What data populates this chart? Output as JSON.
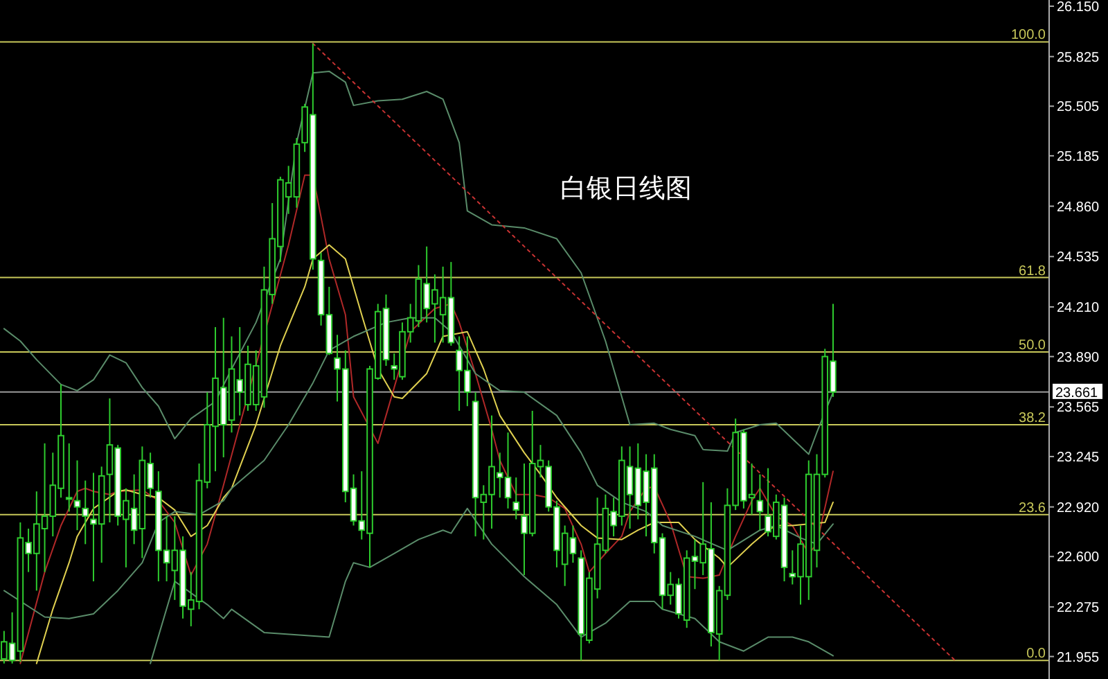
{
  "chart_data": {
    "type": "candlestick",
    "title": "白银日线图",
    "categories": [
      null,
      null,
      null,
      null,
      null,
      null,
      null,
      null,
      null,
      null,
      null,
      null,
      null,
      null,
      null,
      null,
      null,
      null,
      null,
      null,
      null,
      null,
      null,
      null,
      null,
      null,
      null,
      null,
      null,
      null,
      null,
      null,
      null,
      null,
      null,
      null,
      null,
      null,
      null,
      null,
      null,
      null,
      null,
      null,
      null,
      null,
      null,
      null,
      null,
      null,
      null,
      null,
      null,
      null,
      null,
      null,
      null,
      null,
      null,
      null,
      null,
      null,
      null,
      null,
      null,
      null,
      null,
      null,
      null,
      null,
      null,
      null,
      null,
      null,
      null,
      null,
      null,
      null,
      null,
      null,
      null,
      null,
      null,
      null,
      null,
      null,
      null,
      null,
      null,
      null,
      null,
      null,
      null,
      null,
      null,
      null,
      null,
      null,
      null,
      null,
      null,
      null,
      null,
      null,
      null,
      null,
      null,
      null,
      null,
      null,
      null,
      null,
      null,
      null,
      null,
      null,
      null,
      null,
      null,
      null,
      null,
      null,
      null,
      null,
      null,
      null,
      null,
      null,
      null
    ],
    "ohlc": [
      [
        21.94,
        22.12,
        21.91,
        22.05
      ],
      [
        22.04,
        22.24,
        21.91,
        21.93
      ],
      [
        21.99,
        22.82,
        21.92,
        22.72
      ],
      [
        22.69,
        22.78,
        22.5,
        22.62
      ],
      [
        22.62,
        23.02,
        22.38,
        22.81
      ],
      [
        22.78,
        23.33,
        22.5,
        22.86
      ],
      [
        22.86,
        23.27,
        22.73,
        23.06
      ],
      [
        23.04,
        23.71,
        22.98,
        23.38
      ],
      [
        22.98,
        23.33,
        22.89,
        22.97
      ],
      [
        22.96,
        23.22,
        22.77,
        22.92
      ],
      [
        22.91,
        23.09,
        22.68,
        22.86
      ],
      [
        22.84,
        23.14,
        22.44,
        22.81
      ],
      [
        22.81,
        23.18,
        22.56,
        23.12
      ],
      [
        23.13,
        23.62,
        22.82,
        23.32
      ],
      [
        23.3,
        23.32,
        22.8,
        22.86
      ],
      [
        22.84,
        23.04,
        22.53,
        22.96
      ],
      [
        22.91,
        23.13,
        22.68,
        22.77
      ],
      [
        22.78,
        23.31,
        22.59,
        23.22
      ],
      [
        23.2,
        23.27,
        22.98,
        23.04
      ],
      [
        23.02,
        23.15,
        22.44,
        22.64
      ],
      [
        22.64,
        22.86,
        22.44,
        22.56
      ],
      [
        22.51,
        22.86,
        22.32,
        22.64
      ],
      [
        22.64,
        22.73,
        22.2,
        22.28
      ],
      [
        22.26,
        22.5,
        22.15,
        22.32
      ],
      [
        22.31,
        23.2,
        22.26,
        23.09
      ],
      [
        23.08,
        23.66,
        23.04,
        23.45
      ],
      [
        23.44,
        24.08,
        23.15,
        23.75
      ],
      [
        23.69,
        24.14,
        23.24,
        23.45
      ],
      [
        23.48,
        24.02,
        23.4,
        23.81
      ],
      [
        23.74,
        24.08,
        23.51,
        23.66
      ],
      [
        23.58,
        23.96,
        23.54,
        23.84
      ],
      [
        23.58,
        23.93,
        23.54,
        23.83
      ],
      [
        23.63,
        24.47,
        23.56,
        24.32
      ],
      [
        24.29,
        24.88,
        24.23,
        24.65
      ],
      [
        24.6,
        25.05,
        24.5,
        25.03
      ],
      [
        24.92,
        25.12,
        24.81,
        25.01
      ],
      [
        24.92,
        25.3,
        24.85,
        25.26
      ],
      [
        25.27,
        25.52,
        25.21,
        25.5
      ],
      [
        25.45,
        25.91,
        24.45,
        24.52
      ],
      [
        24.51,
        24.56,
        24.09,
        24.16
      ],
      [
        24.16,
        24.34,
        23.9,
        23.91
      ],
      [
        23.88,
        24.03,
        23.6,
        23.81
      ],
      [
        23.81,
        23.93,
        22.95,
        23.02
      ],
      [
        23.04,
        23.13,
        22.8,
        22.83
      ],
      [
        22.83,
        23.15,
        22.71,
        22.77
      ],
      [
        22.75,
        23.83,
        22.53,
        23.81
      ],
      [
        23.75,
        24.23,
        23.74,
        24.18
      ],
      [
        24.2,
        24.29,
        23.83,
        23.87
      ],
      [
        23.83,
        23.91,
        23.74,
        23.81
      ],
      [
        23.76,
        24.11,
        23.74,
        24.05
      ],
      [
        24.05,
        24.23,
        23.98,
        24.14
      ],
      [
        24.12,
        24.48,
        24.08,
        24.39
      ],
      [
        24.36,
        24.6,
        24.11,
        24.2
      ],
      [
        24.23,
        24.42,
        23.98,
        24.32
      ],
      [
        24.16,
        24.47,
        23.98,
        24.27
      ],
      [
        24.27,
        24.5,
        23.96,
        23.98
      ],
      [
        23.93,
        24.02,
        23.54,
        23.8
      ],
      [
        23.8,
        24.02,
        23.57,
        23.66
      ],
      [
        23.6,
        23.66,
        22.73,
        22.98
      ],
      [
        22.95,
        23.06,
        22.71,
        23.0
      ],
      [
        23.0,
        23.51,
        22.78,
        23.18
      ],
      [
        23.14,
        23.27,
        22.98,
        23.11
      ],
      [
        23.11,
        23.4,
        22.91,
        22.98
      ],
      [
        22.95,
        23.11,
        22.84,
        22.9
      ],
      [
        22.86,
        23.2,
        22.48,
        22.75
      ],
      [
        22.75,
        23.54,
        22.73,
        23.2
      ],
      [
        23.18,
        23.32,
        23.11,
        23.22
      ],
      [
        23.18,
        23.22,
        22.89,
        22.92
      ],
      [
        22.92,
        22.96,
        22.53,
        22.64
      ],
      [
        22.55,
        22.8,
        22.41,
        22.75
      ],
      [
        22.72,
        22.8,
        22.56,
        22.62
      ],
      [
        22.59,
        22.64,
        21.93,
        22.1
      ],
      [
        22.06,
        22.5,
        22.04,
        22.46
      ],
      [
        22.39,
        22.98,
        22.33,
        22.68
      ],
      [
        22.64,
        23.0,
        22.62,
        22.91
      ],
      [
        22.89,
        22.98,
        22.73,
        22.8
      ],
      [
        22.86,
        23.31,
        22.8,
        23.22
      ],
      [
        23.18,
        23.31,
        22.78,
        23.0
      ],
      [
        23.17,
        23.33,
        22.84,
        22.93
      ],
      [
        23.15,
        23.26,
        22.73,
        22.95
      ],
      [
        23.17,
        23.26,
        22.62,
        22.69
      ],
      [
        22.72,
        22.75,
        22.26,
        22.35
      ],
      [
        22.35,
        22.5,
        22.29,
        22.42
      ],
      [
        22.42,
        22.46,
        22.2,
        22.23
      ],
      [
        22.19,
        22.64,
        22.14,
        22.59
      ],
      [
        22.6,
        22.71,
        22.39,
        22.57
      ],
      [
        22.56,
        23.08,
        22.48,
        22.68
      ],
      [
        22.65,
        22.95,
        22.02,
        22.11
      ],
      [
        22.1,
        22.41,
        21.93,
        22.38
      ],
      [
        22.35,
        23.04,
        22.32,
        22.93
      ],
      [
        22.93,
        23.49,
        22.9,
        23.4
      ],
      [
        23.4,
        23.42,
        22.91,
        22.96
      ],
      [
        22.98,
        23.2,
        22.87,
        23.0
      ],
      [
        22.96,
        23.13,
        22.77,
        22.89
      ],
      [
        22.86,
        23.17,
        22.73,
        22.76
      ],
      [
        22.73,
        23.0,
        22.71,
        22.95
      ],
      [
        22.93,
        22.98,
        22.44,
        22.53
      ],
      [
        22.49,
        22.64,
        22.42,
        22.47
      ],
      [
        22.47,
        22.8,
        22.29,
        22.68
      ],
      [
        22.47,
        23.22,
        22.32,
        23.13
      ],
      [
        22.64,
        23.26,
        22.53,
        23.13
      ],
      [
        23.13,
        23.94,
        23.11,
        23.89
      ],
      [
        23.86,
        24.23,
        23.63,
        23.661
      ],
      null,
      null,
      null,
      null,
      null,
      null,
      null,
      null,
      null,
      null,
      null,
      null,
      null,
      null,
      null,
      null,
      null,
      null,
      null,
      null,
      null,
      null,
      null,
      null,
      null,
      null
    ],
    "series": [
      {
        "type": "line",
        "color": "#b02828",
        "values": [
          null,
          null,
          21.91,
          null,
          null,
          22.5,
          null,
          22.8,
          null,
          23.02,
          23.04,
          23.02,
          null,
          23.0,
          23.02,
          null,
          null,
          23.03,
          null,
          22.96,
          null,
          22.82,
          null,
          22.48,
          null,
          22.68,
          null,
          23.06,
          null,
          null,
          null,
          null,
          null,
          null,
          null,
          24.61,
          null,
          25.06,
          25.06,
          null,
          24.52,
          null,
          24.16,
          23.63,
          null,
          null,
          23.33,
          null,
          23.69,
          null,
          24.05,
          null,
          null,
          24.2,
          null,
          24.23,
          24.11,
          null,
          23.78,
          null,
          23.42,
          23.22,
          null,
          23.0,
          null,
          23.0,
          null,
          22.98,
          null,
          22.91,
          null,
          22.68,
          22.5,
          null,
          22.62,
          null,
          22.73,
          22.89,
          null,
          23.04,
          23.05,
          null,
          22.82,
          null,
          22.47,
          null,
          22.46,
          null,
          22.48,
          null,
          22.73,
          null,
          22.96,
          23.04,
          null,
          22.86,
          null,
          22.8,
          null,
          22.62,
          22.68,
          null,
          23.15,
          null,
          null,
          null,
          null,
          null,
          null,
          null,
          null,
          null,
          null,
          null,
          null,
          null,
          null,
          null,
          null,
          null,
          null,
          null,
          null,
          null,
          null,
          null,
          null,
          null,
          null
        ]
      },
      {
        "type": "line",
        "color": "#e0d050",
        "values": [
          null,
          null,
          null,
          null,
          21.91,
          null,
          22.26,
          null,
          22.56,
          22.73,
          null,
          22.91,
          null,
          null,
          23.02,
          23.03,
          null,
          23.0,
          null,
          22.98,
          null,
          22.9,
          null,
          22.73,
          null,
          22.8,
          null,
          22.98,
          23.04,
          null,
          null,
          23.45,
          null,
          null,
          23.96,
          null,
          null,
          24.34,
          24.52,
          null,
          24.61,
          null,
          24.52,
          null,
          24.16,
          null,
          23.81,
          null,
          23.63,
          23.62,
          null,
          null,
          23.78,
          null,
          24.02,
          null,
          null,
          24.05,
          null,
          23.81,
          null,
          23.51,
          null,
          null,
          23.27,
          null,
          23.13,
          null,
          22.98,
          null,
          null,
          22.8,
          null,
          22.72,
          null,
          null,
          22.71,
          null,
          22.77,
          null,
          22.82,
          null,
          null,
          22.82,
          null,
          22.71,
          null,
          null,
          22.59,
          22.53,
          null,
          null,
          22.68,
          null,
          22.77,
          22.8,
          null,
          22.8,
          null,
          22.81,
          null,
          22.82,
          22.95,
          null,
          null,
          null,
          null,
          null,
          null,
          null,
          null,
          null,
          null,
          null,
          null,
          null,
          null,
          null,
          null,
          null,
          null,
          null,
          null,
          null,
          null,
          null,
          null,
          null,
          null
        ]
      },
      {
        "type": "line",
        "color": "#5a8c6a",
        "values": [
          24.07,
          null,
          23.99,
          null,
          23.87,
          null,
          null,
          23.71,
          null,
          23.67,
          null,
          23.74,
          null,
          23.9,
          null,
          23.85,
          null,
          23.69,
          null,
          23.57,
          null,
          23.36,
          null,
          23.49,
          null,
          null,
          23.6,
          null,
          23.81,
          null,
          null,
          24.11,
          null,
          null,
          24.52,
          null,
          25.27,
          null,
          25.72,
          null,
          25.73,
          null,
          25.66,
          25.51,
          null,
          null,
          25.54,
          null,
          null,
          25.55,
          null,
          null,
          25.6,
          null,
          25.55,
          null,
          25.27,
          24.83,
          null,
          null,
          24.74,
          null,
          null,
          null,
          24.72,
          null,
          null,
          null,
          24.65,
          null,
          null,
          24.43,
          null,
          null,
          23.99,
          null,
          null,
          23.45,
          null,
          null,
          23.46,
          null,
          23.42,
          null,
          null,
          23.38,
          23.29,
          null,
          null,
          23.28,
          23.4,
          null,
          null,
          23.45,
          null,
          23.46,
          null,
          23.36,
          null,
          23.26,
          23.4,
          null,
          23.66,
          null,
          null,
          null,
          null,
          null,
          null,
          null,
          null,
          null,
          null,
          null,
          null,
          null,
          null,
          null,
          null,
          null,
          null,
          null,
          null,
          null,
          null,
          null,
          null,
          null,
          null
        ]
      },
      {
        "type": "line",
        "color": "#5a8c6a",
        "values": [
          22.38,
          null,
          null,
          null,
          null,
          22.21,
          null,
          null,
          22.2,
          null,
          null,
          22.23,
          null,
          null,
          22.38,
          null,
          null,
          22.56,
          null,
          22.82,
          null,
          22.89,
          null,
          null,
          22.87,
          null,
          null,
          22.96,
          23.04,
          null,
          null,
          null,
          23.22,
          null,
          null,
          23.45,
          null,
          null,
          23.72,
          null,
          23.93,
          null,
          null,
          24.02,
          null,
          null,
          null,
          24.11,
          null,
          null,
          24.14,
          null,
          null,
          24.14,
          null,
          24.05,
          null,
          null,
          23.78,
          null,
          null,
          23.67,
          null,
          null,
          23.66,
          null,
          null,
          null,
          23.51,
          null,
          null,
          23.27,
          null,
          23.06,
          null,
          null,
          22.95,
          null,
          null,
          22.89,
          null,
          22.8,
          null,
          null,
          null,
          22.73,
          null,
          null,
          null,
          22.64,
          null,
          null,
          null,
          22.77,
          null,
          22.8,
          null,
          null,
          22.72,
          null,
          22.68,
          null,
          22.81,
          null,
          null,
          null,
          null,
          null,
          null,
          null,
          null,
          null,
          null,
          null,
          null,
          null,
          null,
          null,
          null,
          null,
          null,
          null,
          null,
          null,
          null,
          null,
          null,
          null,
          null
        ]
      },
      {
        "type": "line",
        "color": "#5a8c6a",
        "values": [
          null,
          null,
          null,
          null,
          null,
          null,
          null,
          null,
          null,
          null,
          null,
          null,
          null,
          null,
          null,
          null,
          null,
          null,
          21.91,
          null,
          null,
          22.44,
          null,
          null,
          null,
          22.29,
          null,
          22.2,
          22.26,
          null,
          null,
          null,
          22.11,
          null,
          null,
          null,
          null,
          null,
          null,
          null,
          22.08,
          null,
          22.44,
          22.56,
          null,
          22.53,
          null,
          null,
          22.62,
          null,
          null,
          22.71,
          null,
          null,
          22.77,
          22.75,
          null,
          22.91,
          null,
          null,
          22.68,
          null,
          null,
          null,
          22.47,
          null,
          null,
          null,
          22.29,
          null,
          null,
          22.08,
          null,
          null,
          22.17,
          null,
          null,
          22.31,
          null,
          null,
          22.31,
          22.26,
          null,
          null,
          null,
          22.2,
          null,
          null,
          22.05,
          null,
          null,
          21.99,
          null,
          null,
          22.08,
          null,
          null,
          22.08,
          null,
          22.05,
          null,
          null,
          21.96,
          null,
          null,
          null,
          null,
          null,
          null,
          null,
          null,
          null,
          null,
          null,
          null,
          null,
          null,
          null,
          null,
          null,
          null,
          null,
          null,
          null,
          null,
          null,
          null,
          null,
          null
        ]
      },
      {
        "type": "line",
        "color": "#c83232",
        "line_style": "dotted",
        "values": [
          null,
          null,
          null,
          null,
          null,
          null,
          null,
          null,
          null,
          null,
          null,
          null,
          null,
          null,
          null,
          null,
          null,
          null,
          null,
          null,
          null,
          null,
          null,
          null,
          null,
          null,
          null,
          null,
          null,
          null,
          null,
          null,
          null,
          null,
          null,
          null,
          null,
          null,
          25.91,
          null,
          null,
          null,
          null,
          null,
          null,
          null,
          null,
          null,
          null,
          null,
          null,
          null,
          null,
          null,
          null,
          null,
          null,
          null,
          null,
          null,
          null,
          null,
          null,
          null,
          null,
          null,
          null,
          null,
          null,
          null,
          null,
          null,
          null,
          null,
          null,
          null,
          null,
          null,
          null,
          null,
          null,
          null,
          null,
          null,
          null,
          null,
          null,
          null,
          null,
          null,
          null,
          null,
          null,
          null,
          null,
          null,
          null,
          null,
          null,
          null,
          null,
          null,
          null,
          null,
          null,
          null,
          null,
          null,
          null,
          null,
          null,
          null,
          null,
          null,
          null,
          null,
          null,
          21.93,
          null,
          null,
          null,
          null,
          null,
          null,
          null,
          null,
          null,
          null,
          null
        ]
      }
    ],
    "ylim": [
      21.81,
      26.19
    ],
    "yticks": [
      {
        "value": 21.955,
        "label": "21.955"
      },
      {
        "value": 22.275,
        "label": "22.275"
      },
      {
        "value": 22.6,
        "label": "22.600"
      },
      {
        "value": 22.92,
        "label": "22.920"
      },
      {
        "value": 23.245,
        "label": "23.245"
      },
      {
        "value": 23.565,
        "label": "23.565"
      },
      {
        "value": 23.89,
        "label": "23.890"
      },
      {
        "value": 24.21,
        "label": "24.210"
      },
      {
        "value": 24.535,
        "label": "24.535"
      },
      {
        "value": 24.86,
        "label": "24.860"
      },
      {
        "value": 25.185,
        "label": "25.185"
      },
      {
        "value": 25.505,
        "label": "25.505"
      },
      {
        "value": 25.825,
        "label": "25.825"
      },
      {
        "value": 26.15,
        "label": "26.150"
      }
    ],
    "ref_lines": [
      {
        "axis": "y",
        "value": 25.92,
        "color": "#c8c85a"
      },
      {
        "axis": "y",
        "value": 24.4,
        "color": "#c8c85a"
      },
      {
        "axis": "y",
        "value": 23.92,
        "color": "#c8c85a"
      },
      {
        "axis": "y",
        "value": 23.45,
        "color": "#c8c85a"
      },
      {
        "axis": "y",
        "value": 22.87,
        "color": "#c8c85a"
      },
      {
        "axis": "y",
        "value": 21.93,
        "color": "#c8c85a"
      },
      {
        "axis": "y",
        "value": 23.661,
        "label": "23.661",
        "color": "#9a9a9a"
      }
    ],
    "annotations": [
      {
        "text": "100.0",
        "y": 25.92
      },
      {
        "text": "61.8",
        "y": 24.4
      },
      {
        "text": "50.0",
        "y": 23.92
      },
      {
        "text": "38.2",
        "y": 23.45
      },
      {
        "text": "23.6",
        "y": 22.87
      },
      {
        "text": "0.0",
        "y": 21.93
      }
    ],
    "tick_labels": "y"
  }
}
